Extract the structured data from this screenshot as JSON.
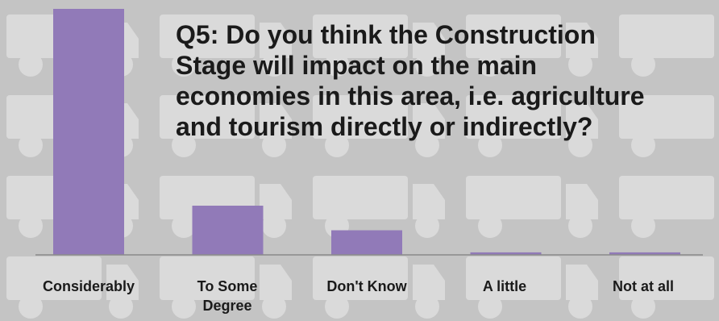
{
  "colors": {
    "background": "#c4c4c4",
    "truck_pattern": "#ececec",
    "bar": "#917ab8",
    "axis": "#8a8a8a"
  },
  "chart_data": {
    "type": "bar",
    "title_lines": [
      "Q5: Do you think the Construction",
      "Stage will impact on the main",
      "economies in this area, i.e. agriculture",
      "and tourism directly or indirectly?"
    ],
    "categories": [
      "Considerably",
      "To Some Degree",
      "Don't Know",
      "A little",
      "Not at all"
    ],
    "values": [
      100,
      20,
      10,
      1,
      1
    ],
    "ylim": [
      0,
      100
    ],
    "grid": false,
    "legend": "none"
  }
}
